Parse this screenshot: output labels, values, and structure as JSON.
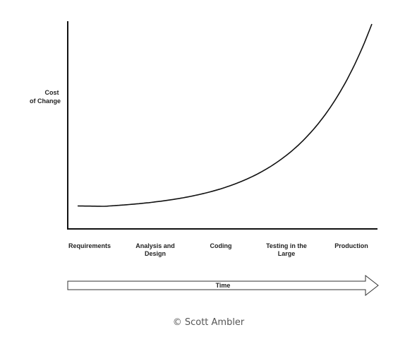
{
  "chart_data": {
    "type": "line",
    "ylabel_lines": [
      "Cost",
      "of Change"
    ],
    "categories": [
      [
        "Requirements"
      ],
      [
        "Analysis and",
        "Design"
      ],
      [
        "Coding"
      ],
      [
        "Testing in the",
        "Large"
      ],
      [
        "Production"
      ]
    ],
    "series": [
      {
        "color": "#111111"
      }
    ],
    "time_arrow_label": "Time",
    "grid": false,
    "legend": "none"
  },
  "footer": {
    "copyright": "© Scott Ambler"
  },
  "colors": {
    "line": "#111111",
    "axis": "#111111",
    "background": "#ffffff"
  }
}
